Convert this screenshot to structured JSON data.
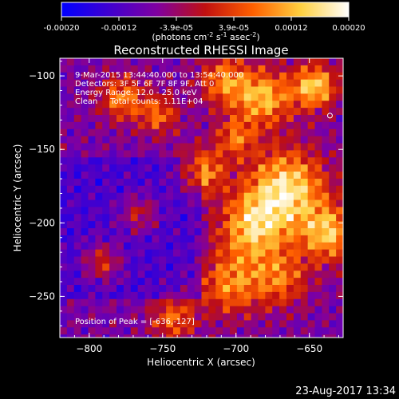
{
  "colorbar": {
    "ticks": [
      "-0.00020",
      "-0.00012",
      "-3.9e-05",
      "3.9e-05",
      "0.00012",
      "0.00020"
    ],
    "units_parts": [
      "(photons cm",
      "-2",
      " s",
      "-1",
      " asec",
      "-2",
      ")"
    ],
    "stops": [
      "#0000ff",
      "#4000d0",
      "#8000a0",
      "#c01010",
      "#ff6000",
      "#ffd040",
      "#ffffff"
    ]
  },
  "chart_data": {
    "type": "heatmap",
    "title": "Reconstructed RHESSI Image",
    "xlabel": "Heliocentric X (arcsec)",
    "ylabel": "Heliocentric Y (arcsec)",
    "xlim": [
      -820,
      -627
    ],
    "ylim": [
      -278,
      -88
    ],
    "xticks": [
      -800,
      -750,
      -700,
      -650
    ],
    "yticks": [
      -100,
      -150,
      -200,
      -250
    ],
    "xtick_labels": [
      "−800",
      "−750",
      "−700",
      "−650"
    ],
    "ytick_labels": [
      "−100",
      "−150",
      "−200",
      "−250"
    ],
    "value_range": [
      -0.0002,
      0.0002
    ],
    "annotations": [
      "9-Mar-2015 13:44:40.000 to 13:54:40.000",
      "Detectors: 3F 5F 6F 7F 8F 9F, Att 0",
      "Energy Range: 12.0 - 25.0 keV",
      "Clean     Total counts: 1.11E+04"
    ],
    "peak_label": "Position of Peak = [-636,-127]",
    "peak": [
      -636,
      -127
    ]
  },
  "footer": {
    "timestamp": "23-Aug-2017 13:34"
  }
}
